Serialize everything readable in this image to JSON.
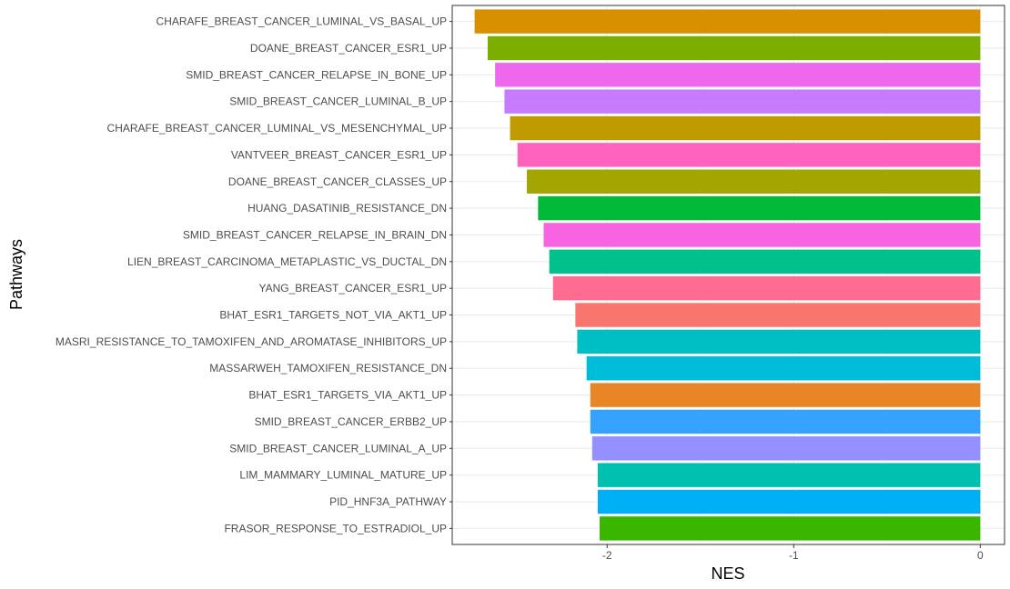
{
  "chart_data": {
    "type": "bar",
    "orientation": "horizontal",
    "xlabel": "NES",
    "ylabel": "Pathways",
    "xlim": [
      -2.83,
      0.13
    ],
    "xticks": [
      -2,
      -1,
      0
    ],
    "xtick_labels": [
      "-2",
      "-1",
      "0"
    ],
    "grid": true,
    "categories": [
      "CHARAFE_BREAST_CANCER_LUMINAL_VS_BASAL_UP",
      "DOANE_BREAST_CANCER_ESR1_UP",
      "SMID_BREAST_CANCER_RELAPSE_IN_BONE_UP",
      "SMID_BREAST_CANCER_LUMINAL_B_UP",
      "CHARAFE_BREAST_CANCER_LUMINAL_VS_MESENCHYMAL_UP",
      "VANTVEER_BREAST_CANCER_ESR1_UP",
      "DOANE_BREAST_CANCER_CLASSES_UP",
      "HUANG_DASATINIB_RESISTANCE_DN",
      "SMID_BREAST_CANCER_RELAPSE_IN_BRAIN_DN",
      "LIEN_BREAST_CARCINOMA_METAPLASTIC_VS_DUCTAL_DN",
      "YANG_BREAST_CANCER_ESR1_UP",
      "BHAT_ESR1_TARGETS_NOT_VIA_AKT1_UP",
      "MASRI_RESISTANCE_TO_TAMOXIFEN_AND_AROMATASE_INHIBITORS_UP",
      "MASSARWEH_TAMOXIFEN_RESISTANCE_DN",
      "BHAT_ESR1_TARGETS_VIA_AKT1_UP",
      "SMID_BREAST_CANCER_ERBB2_UP",
      "SMID_BREAST_CANCER_LUMINAL_A_UP",
      "LIM_MAMMARY_LUMINAL_MATURE_UP",
      "PID_HNF3A_PATHWAY",
      "FRASOR_RESPONSE_TO_ESTRADIOL_UP"
    ],
    "values": [
      -2.71,
      -2.64,
      -2.6,
      -2.55,
      -2.52,
      -2.48,
      -2.43,
      -2.37,
      -2.34,
      -2.31,
      -2.29,
      -2.17,
      -2.16,
      -2.11,
      -2.09,
      -2.09,
      -2.08,
      -2.05,
      -2.05,
      -2.04
    ],
    "colors": [
      "#D89000",
      "#7CAE00",
      "#ED68ED",
      "#C77CFF",
      "#BF9B00",
      "#FF62BC",
      "#A3A500",
      "#00BA38",
      "#F763E0",
      "#00C08B",
      "#FF6C91",
      "#F8766D",
      "#00BFC4",
      "#00BCD8",
      "#E88526",
      "#35A2FF",
      "#9590FF",
      "#00C0AF",
      "#00B0F6",
      "#39B600"
    ]
  }
}
